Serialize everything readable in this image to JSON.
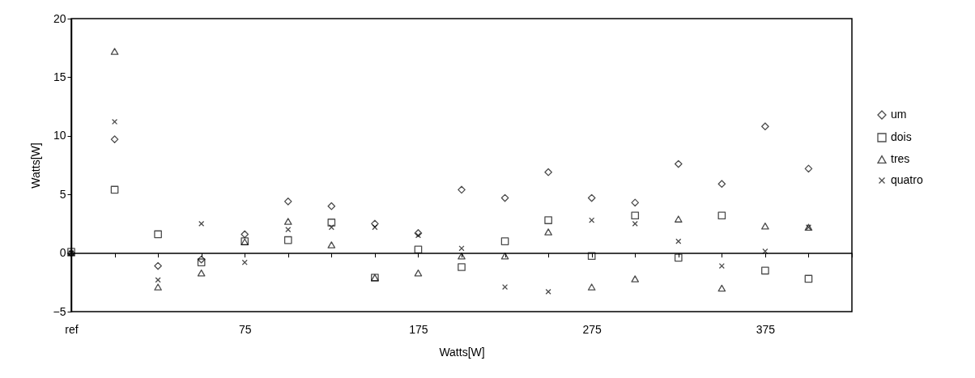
{
  "chart_data": {
    "type": "scatter",
    "xlabel": "Watts[W]",
    "ylabel": "Watts[W]",
    "categories": [
      "ref",
      null,
      null,
      null,
      "75",
      null,
      null,
      null,
      "175",
      null,
      null,
      null,
      "275",
      null,
      null,
      null,
      "375",
      null,
      null
    ],
    "ylim": [
      -5,
      20
    ],
    "yticks": [
      -5,
      0,
      5,
      10,
      15,
      20
    ],
    "legend": "right",
    "series": [
      {
        "name": "um",
        "color": "#000000",
        "marker": "diamond",
        "values": [
          0,
          9.7,
          -1.1,
          -0.55,
          1.6,
          4.4,
          4.0,
          2.5,
          1.7,
          5.4,
          4.7,
          6.9,
          4.7,
          4.3,
          7.6,
          5.9,
          10.8,
          7.2,
          null
        ]
      },
      {
        "name": "dois",
        "color": "#000000",
        "marker": "square",
        "values": [
          0.1,
          5.4,
          1.6,
          -0.8,
          1.0,
          1.1,
          2.6,
          -2.1,
          0.3,
          -1.2,
          1.0,
          2.8,
          -0.25,
          3.2,
          -0.4,
          3.2,
          -1.5,
          -2.2,
          null
        ]
      },
      {
        "name": "tres",
        "color": "#000000",
        "marker": "triangle",
        "values": [
          0,
          17.2,
          -2.9,
          -1.7,
          0.95,
          2.7,
          0.7,
          -2.1,
          -1.7,
          -0.25,
          -0.25,
          1.8,
          -2.9,
          -2.2,
          2.9,
          -3.0,
          2.3,
          2.2,
          null
        ]
      },
      {
        "name": "quatro",
        "color": "#000000",
        "marker": "cross",
        "values": [
          0,
          11.2,
          -2.3,
          2.5,
          -0.8,
          2.0,
          2.2,
          2.2,
          1.5,
          0.4,
          -2.9,
          -3.3,
          2.8,
          2.5,
          1.0,
          -1.1,
          0.15,
          2.2,
          null
        ]
      }
    ]
  }
}
